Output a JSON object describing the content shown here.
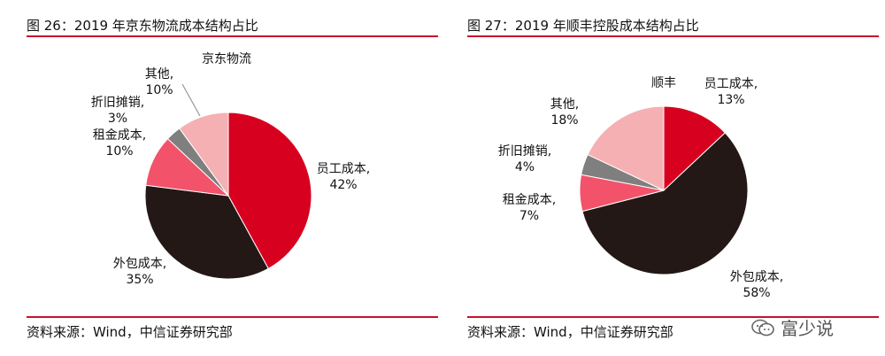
{
  "chart_data": [
    {
      "type": "pie",
      "title": "图 26：2019 年京东物流成本结构占比",
      "series_label": "京东物流",
      "slices": [
        {
          "label": "员工成本,",
          "pct_text": "42%",
          "value": 42,
          "color": "#d7001f"
        },
        {
          "label": "外包成本,",
          "pct_text": "35%",
          "value": 35,
          "color": "#231815"
        },
        {
          "label": "租金成本,",
          "pct_text": "10%",
          "value": 10,
          "color": "#f2536a"
        },
        {
          "label": "折旧摊销,",
          "pct_text": "3%",
          "value": 3,
          "color": "#7f7f7f"
        },
        {
          "label": "其他,",
          "pct_text": "10%",
          "value": 10,
          "color": "#f5b0b3"
        }
      ],
      "source": "资料来源：Wind，中信证券研究部"
    },
    {
      "type": "pie",
      "title": "图 27：2019 年顺丰控股成本结构占比",
      "series_label": "顺丰",
      "slices": [
        {
          "label": "员工成本,",
          "pct_text": "13%",
          "value": 13,
          "color": "#d7001f"
        },
        {
          "label": "外包成本,",
          "pct_text": "58%",
          "value": 58,
          "color": "#231815"
        },
        {
          "label": "租金成本,",
          "pct_text": "7%",
          "value": 7,
          "color": "#f2536a"
        },
        {
          "label": "折旧摊销,",
          "pct_text": "4%",
          "value": 4,
          "color": "#7f7f7f"
        },
        {
          "label": "其他,",
          "pct_text": "18%",
          "value": 18,
          "color": "#f5b0b3"
        }
      ],
      "source": "资料来源：Wind，中信证券研究部"
    }
  ],
  "accent_color": "#c8102e",
  "watermark": {
    "icon": "wechat-icon",
    "text": "富少说"
  }
}
